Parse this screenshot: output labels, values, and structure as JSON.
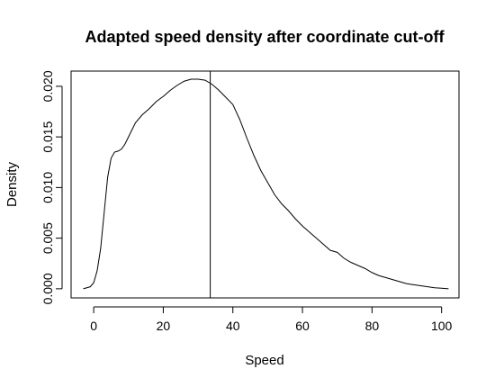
{
  "chart_data": {
    "type": "line",
    "title": "Adapted speed density after coordinate cut-off",
    "xlabel": "Speed",
    "ylabel": "Density",
    "xlim": [
      -6.5,
      105
    ],
    "ylim": [
      -0.0009,
      0.0215
    ],
    "xticks": [
      0,
      20,
      40,
      60,
      80,
      100
    ],
    "xtick_labels": [
      "0",
      "20",
      "40",
      "60",
      "80",
      "100"
    ],
    "yticks": [
      0.0,
      0.005,
      0.01,
      0.015,
      0.02
    ],
    "ytick_labels": [
      "0.000",
      "0.005",
      "0.010",
      "0.015",
      "0.020"
    ],
    "grid": false,
    "vline": 33.5,
    "series": [
      {
        "x": [
          -3,
          -1,
          0,
          1,
          2,
          3,
          4,
          5,
          6,
          7,
          8,
          9,
          10,
          12,
          14,
          16,
          18,
          20,
          22,
          24,
          26,
          28,
          30,
          32,
          34,
          36,
          38,
          40,
          42,
          44,
          46,
          48,
          50,
          52,
          54,
          56,
          58,
          60,
          62,
          64,
          66,
          68,
          70,
          72,
          74,
          76,
          78,
          80,
          82,
          84,
          86,
          88,
          90,
          92,
          94,
          96,
          98,
          100,
          102
        ],
        "y": [
          0.0,
          0.0002,
          0.0006,
          0.0018,
          0.004,
          0.0075,
          0.011,
          0.0129,
          0.0135,
          0.0136,
          0.0138,
          0.0143,
          0.015,
          0.0164,
          0.0172,
          0.0178,
          0.0185,
          0.019,
          0.0196,
          0.0201,
          0.0205,
          0.0207,
          0.0207,
          0.0206,
          0.0202,
          0.0196,
          0.0189,
          0.0182,
          0.0167,
          0.0149,
          0.0132,
          0.0117,
          0.0105,
          0.0093,
          0.0084,
          0.0077,
          0.0069,
          0.0062,
          0.0056,
          0.005,
          0.0044,
          0.0038,
          0.0036,
          0.003,
          0.0026,
          0.0023,
          0.002,
          0.0016,
          0.0013,
          0.0011,
          0.0009,
          0.0007,
          0.0005,
          0.0004,
          0.0003,
          0.0002,
          0.0001,
          5e-05,
          0.0
        ]
      }
    ]
  }
}
